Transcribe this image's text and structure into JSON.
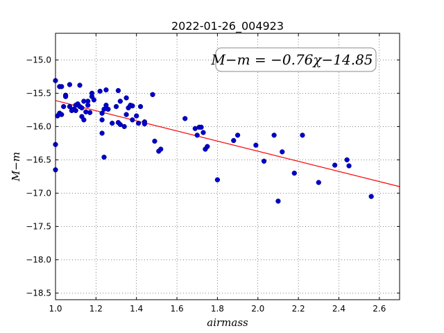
{
  "chart_data": {
    "type": "scatter",
    "title": "2022-01-26_004923",
    "xlabel": "airmass",
    "ylabel": "M−m",
    "xlim": [
      1.0,
      2.7
    ],
    "ylim": [
      -18.6,
      -14.6
    ],
    "xticks": [
      1.0,
      1.2,
      1.4,
      1.6,
      1.8,
      2.0,
      2.2,
      2.4,
      2.6
    ],
    "xtick_labels": [
      "1.0",
      "1.2",
      "1.4",
      "1.6",
      "1.8",
      "2.0",
      "2.2",
      "2.4",
      "2.6"
    ],
    "yticks": [
      -15.0,
      -15.5,
      -16.0,
      -16.5,
      -17.0,
      -17.5,
      -18.0,
      -18.5
    ],
    "ytick_labels": [
      "−15.0",
      "−15.5",
      "−16.0",
      "−16.5",
      "−17.0",
      "−17.5",
      "−18.0",
      "−18.5"
    ],
    "grid": true,
    "annotation": "M−m = −0.76χ−14.85",
    "colors": {
      "points": "#0000cc",
      "fit_line": "#ff0000"
    },
    "fit": {
      "slope": -0.76,
      "intercept": -14.85
    },
    "points": [
      [
        1.0,
        -15.31
      ],
      [
        1.0,
        -16.27
      ],
      [
        1.0,
        -16.65
      ],
      [
        1.01,
        -15.84
      ],
      [
        1.02,
        -15.8
      ],
      [
        1.02,
        -15.4
      ],
      [
        1.03,
        -15.4
      ],
      [
        1.03,
        -15.82
      ],
      [
        1.04,
        -15.7
      ],
      [
        1.05,
        -15.53
      ],
      [
        1.05,
        -15.55
      ],
      [
        1.07,
        -15.37
      ],
      [
        1.07,
        -15.7
      ],
      [
        1.08,
        -15.76
      ],
      [
        1.09,
        -15.74
      ],
      [
        1.1,
        -15.68
      ],
      [
        1.1,
        -15.76
      ],
      [
        1.11,
        -15.66
      ],
      [
        1.12,
        -15.38
      ],
      [
        1.12,
        -15.7
      ],
      [
        1.13,
        -15.72
      ],
      [
        1.13,
        -15.85
      ],
      [
        1.14,
        -15.62
      ],
      [
        1.14,
        -15.9
      ],
      [
        1.15,
        -15.78
      ],
      [
        1.16,
        -15.62
      ],
      [
        1.16,
        -15.68
      ],
      [
        1.17,
        -15.79
      ],
      [
        1.18,
        -15.5
      ],
      [
        1.18,
        -15.55
      ],
      [
        1.19,
        -15.6
      ],
      [
        1.22,
        -15.47
      ],
      [
        1.23,
        -15.9
      ],
      [
        1.23,
        -16.1
      ],
      [
        1.23,
        -15.8
      ],
      [
        1.24,
        -15.74
      ],
      [
        1.24,
        -16.46
      ],
      [
        1.25,
        -15.45
      ],
      [
        1.25,
        -15.68
      ],
      [
        1.26,
        -15.74
      ],
      [
        1.28,
        -15.95
      ],
      [
        1.3,
        -15.7
      ],
      [
        1.31,
        -15.94
      ],
      [
        1.31,
        -15.46
      ],
      [
        1.32,
        -15.62
      ],
      [
        1.32,
        -15.97
      ],
      [
        1.34,
        -16.0
      ],
      [
        1.35,
        -15.57
      ],
      [
        1.35,
        -15.82
      ],
      [
        1.36,
        -15.72
      ],
      [
        1.37,
        -15.68
      ],
      [
        1.38,
        -15.9
      ],
      [
        1.38,
        -15.69
      ],
      [
        1.4,
        -15.84
      ],
      [
        1.41,
        -15.95
      ],
      [
        1.42,
        -15.7
      ],
      [
        1.44,
        -15.93
      ],
      [
        1.44,
        -15.96
      ],
      [
        1.48,
        -15.52
      ],
      [
        1.49,
        -16.22
      ],
      [
        1.51,
        -16.37
      ],
      [
        1.52,
        -16.34
      ],
      [
        1.64,
        -15.88
      ],
      [
        1.69,
        -16.03
      ],
      [
        1.7,
        -16.13
      ],
      [
        1.71,
        -16.01
      ],
      [
        1.72,
        -16.01
      ],
      [
        1.73,
        -16.09
      ],
      [
        1.74,
        -16.34
      ],
      [
        1.75,
        -16.3
      ],
      [
        1.8,
        -16.8
      ],
      [
        1.88,
        -16.21
      ],
      [
        1.9,
        -16.13
      ],
      [
        1.99,
        -16.28
      ],
      [
        2.03,
        -16.52
      ],
      [
        2.08,
        -16.13
      ],
      [
        2.1,
        -17.12
      ],
      [
        2.12,
        -16.38
      ],
      [
        2.18,
        -16.7
      ],
      [
        2.22,
        -16.13
      ],
      [
        2.3,
        -16.84
      ],
      [
        2.38,
        -16.58
      ],
      [
        2.44,
        -16.5
      ],
      [
        2.45,
        -16.59
      ],
      [
        2.56,
        -17.05
      ]
    ]
  }
}
